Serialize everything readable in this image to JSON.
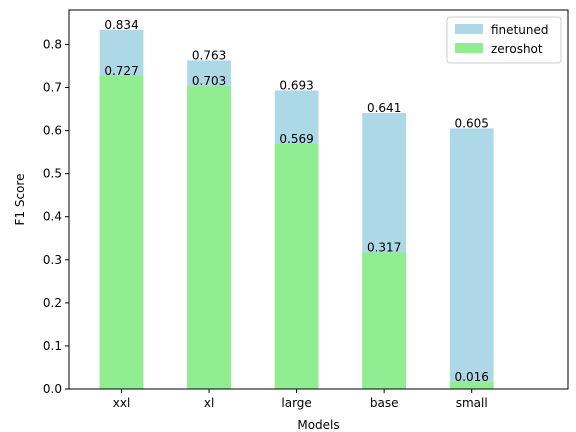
{
  "chart_data": {
    "type": "bar",
    "xlabel": "Models",
    "ylabel": "F1 Score",
    "categories": [
      "xxl",
      "xl",
      "large",
      "base",
      "small"
    ],
    "series": [
      {
        "name": "finetuned",
        "color": "#add8e6",
        "values": [
          0.834,
          0.763,
          0.693,
          0.641,
          0.605
        ]
      },
      {
        "name": "zeroshot",
        "color": "#90ee90",
        "values": [
          0.727,
          0.703,
          0.569,
          0.317,
          0.016
        ]
      }
    ],
    "data_labels": {
      "finetuned": [
        "0.834",
        "0.763",
        "0.693",
        "0.641",
        "0.605"
      ],
      "zeroshot": [
        "0.727",
        "0.703",
        "0.569",
        "0.317",
        "0.016"
      ]
    },
    "ylim": [
      0,
      0.88
    ],
    "yticks": [
      0.0,
      0.1,
      0.2,
      0.3,
      0.4,
      0.5,
      0.6,
      0.7,
      0.8
    ],
    "ytick_labels": [
      "0.0",
      "0.1",
      "0.2",
      "0.3",
      "0.4",
      "0.5",
      "0.6",
      "0.7",
      "0.8"
    ],
    "grid": false,
    "legend_position": "top-right",
    "bars_overlaid": true
  }
}
